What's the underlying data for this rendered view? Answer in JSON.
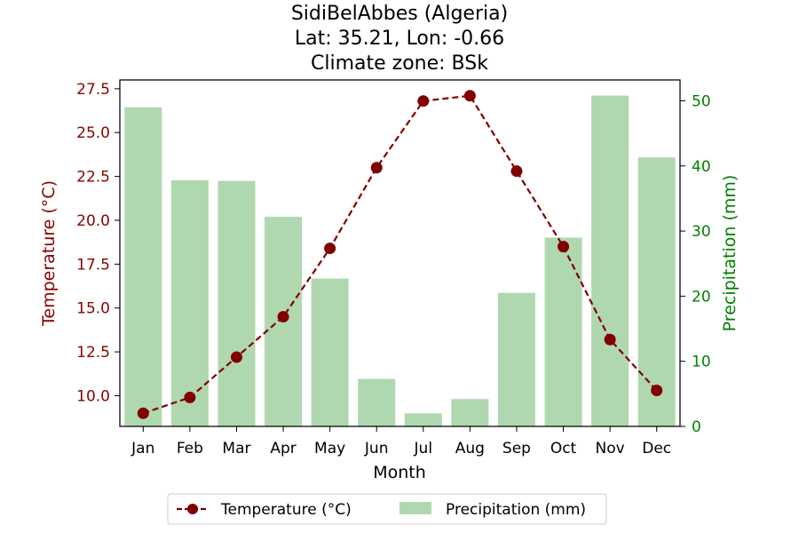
{
  "chart_data": {
    "type": "bar+line",
    "title_lines": [
      "SidiBelAbbes (Algeria)",
      "Lat: 35.21, Lon: -0.66",
      "Climate zone: BSk"
    ],
    "xlabel": "Month",
    "ylabel_left": "Temperature (°C)",
    "ylabel_right": "Precipitation (mm)",
    "categories": [
      "Jan",
      "Feb",
      "Mar",
      "Apr",
      "May",
      "Jun",
      "Jul",
      "Aug",
      "Sep",
      "Oct",
      "Nov",
      "Dec"
    ],
    "temperature": {
      "name": "Temperature (°C)",
      "values": [
        9.0,
        9.9,
        12.2,
        14.5,
        18.4,
        23.0,
        26.8,
        27.1,
        22.8,
        18.5,
        13.2,
        10.3
      ],
      "color": "#800000",
      "style": "dashed line with circle markers"
    },
    "precipitation": {
      "name": "Precipitation (mm)",
      "values": [
        49.0,
        37.8,
        37.7,
        32.2,
        22.7,
        7.3,
        2.0,
        4.2,
        20.5,
        29.0,
        50.8,
        41.3
      ],
      "color": "#b0d8b0"
    },
    "ylim_left": [
      8.25,
      28.0
    ],
    "yticks_left": [
      "10.0",
      "12.5",
      "15.0",
      "17.5",
      "20.0",
      "22.5",
      "25.0",
      "27.5"
    ],
    "ylim_right": [
      0,
      53.2
    ],
    "yticks_right": [
      "0",
      "10",
      "20",
      "30",
      "40",
      "50"
    ],
    "left_axis_color": "#8b0000",
    "right_axis_color": "#008000",
    "legend_position": "bottom-center",
    "grid": false
  }
}
